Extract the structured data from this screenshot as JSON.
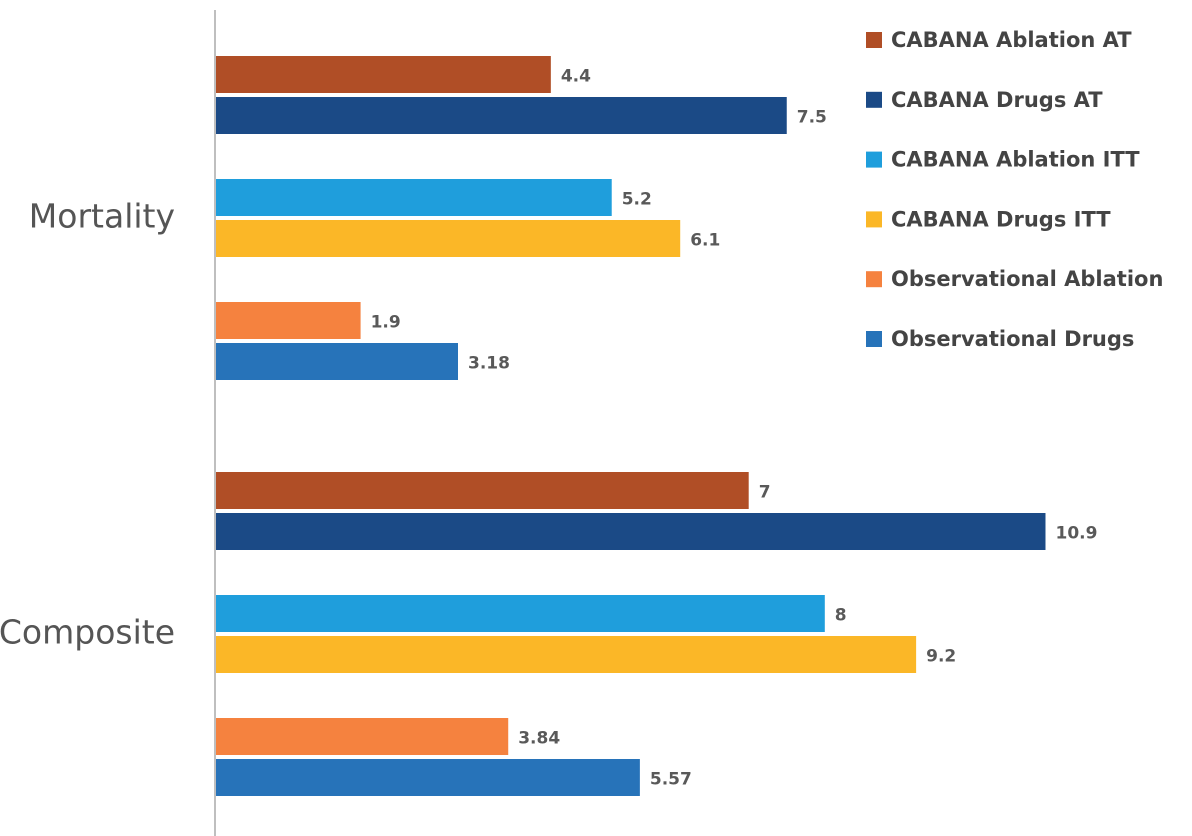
{
  "chart_data": {
    "type": "bar",
    "orientation": "horizontal",
    "categories": [
      "Mortality",
      "Composite"
    ],
    "series": [
      {
        "name": "CABANA Ablation AT",
        "color": "#b04e26",
        "values": [
          4.4,
          7
        ]
      },
      {
        "name": "CABANA Drugs AT",
        "color": "#1b4a86",
        "values": [
          7.5,
          10.9
        ]
      },
      {
        "name": "CABANA Ablation ITT",
        "color": "#1f9edc",
        "values": [
          5.2,
          8
        ]
      },
      {
        "name": "CABANA Drugs ITT",
        "color": "#fbb727",
        "values": [
          6.1,
          9.2
        ]
      },
      {
        "name": "Observational Ablation",
        "color": "#f5823f",
        "values": [
          1.9,
          3.84
        ]
      },
      {
        "name": "Observational Drugs",
        "color": "#2773b9",
        "values": [
          3.18,
          5.57
        ]
      }
    ]
  }
}
